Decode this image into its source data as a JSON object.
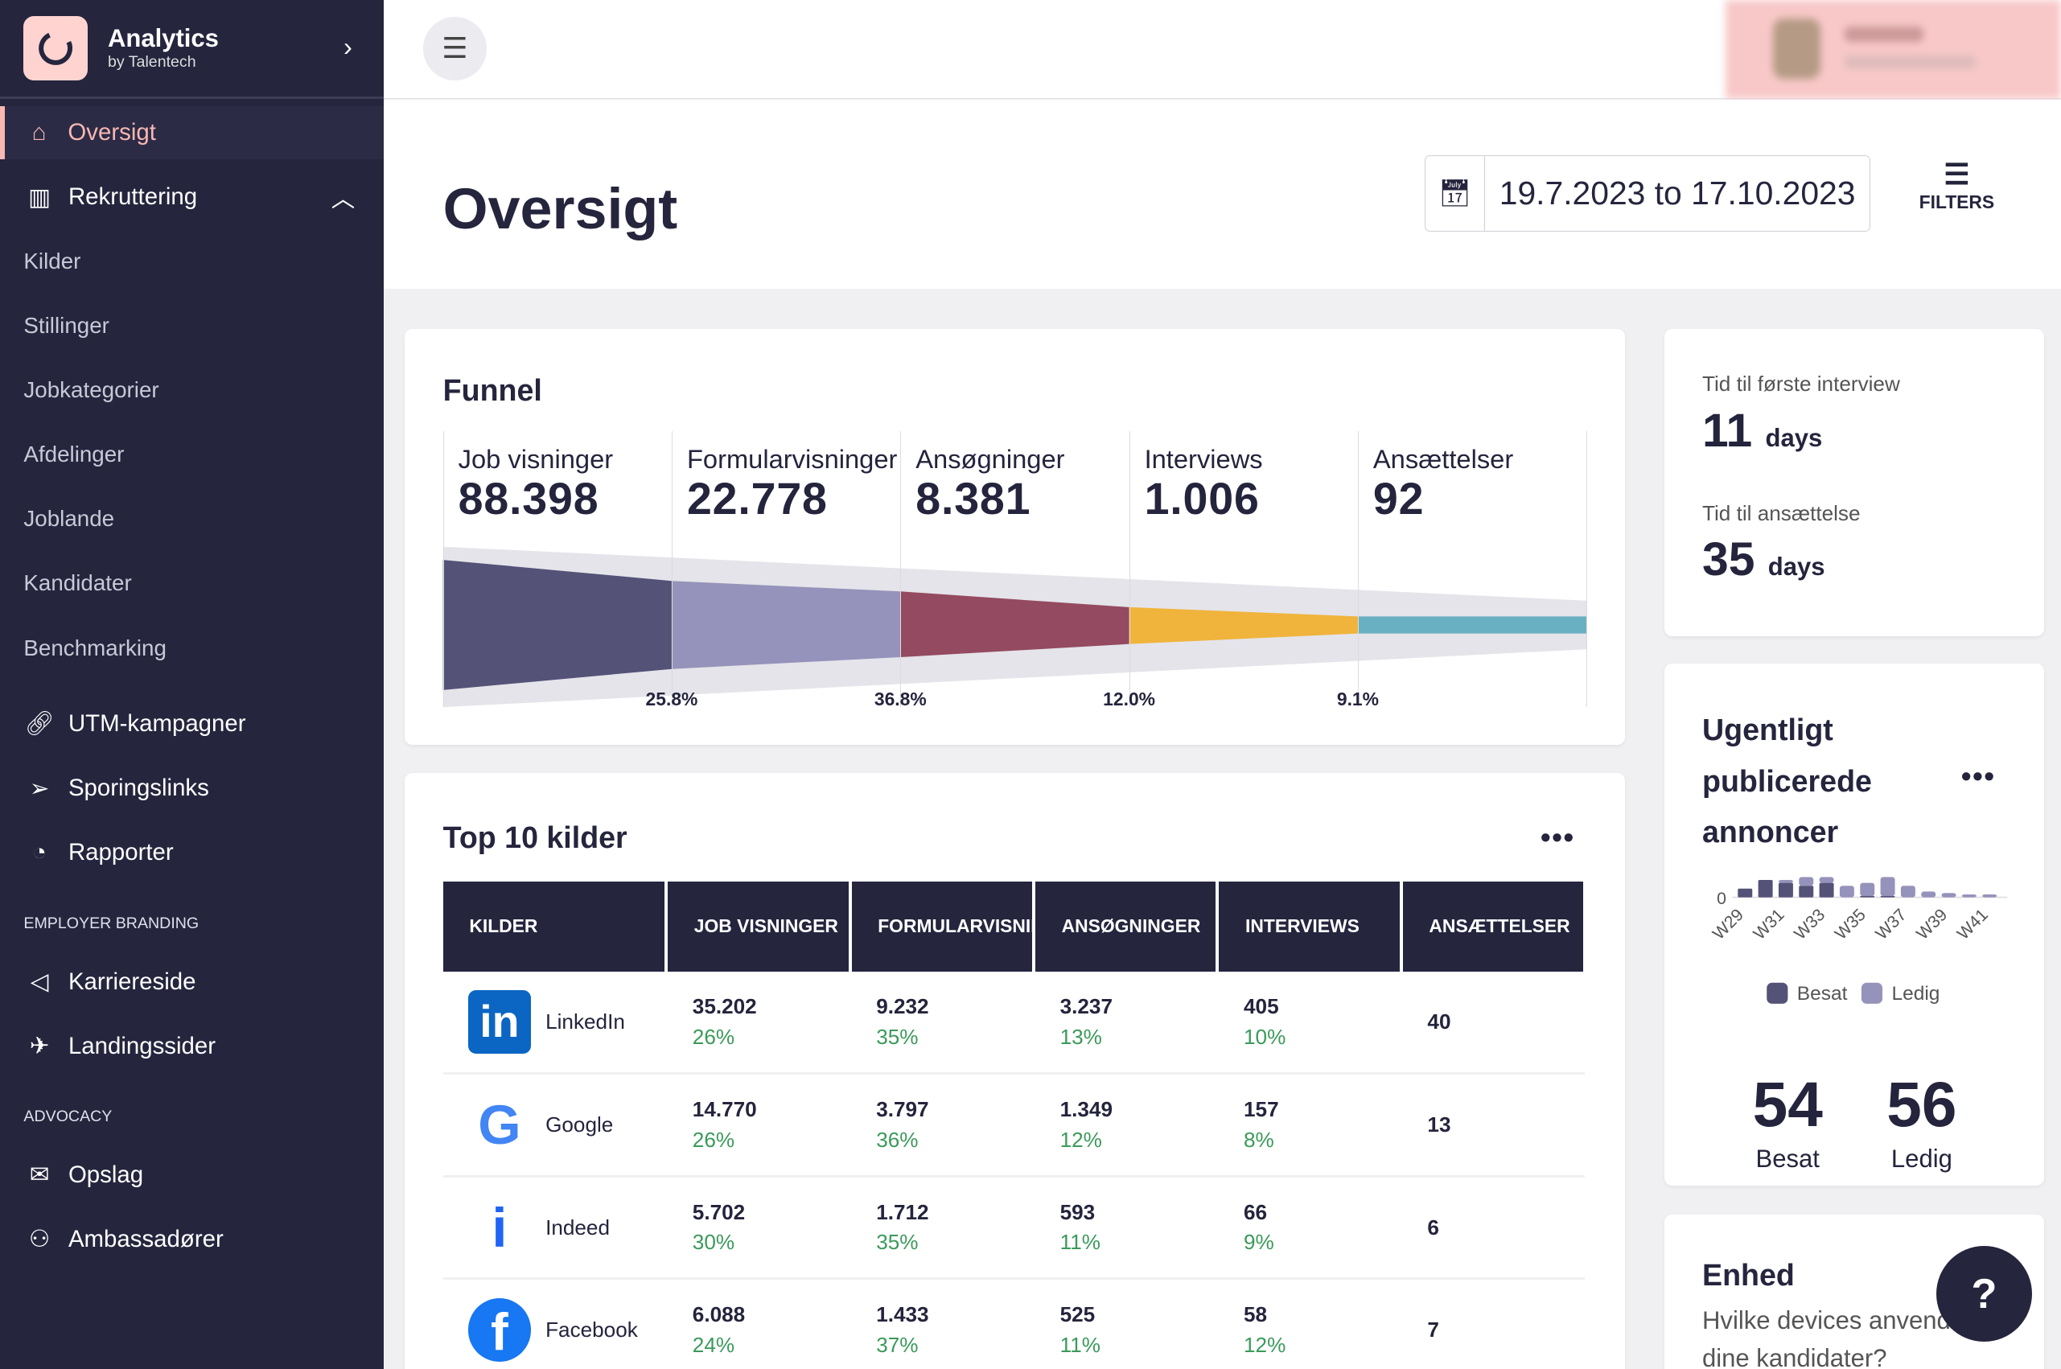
{
  "brand": {
    "title": "Analytics",
    "subtitle": "by Talentech"
  },
  "sidebar": {
    "items": [
      {
        "label": "Oversigt",
        "icon": "home-icon",
        "active": true
      },
      {
        "label": "Rekruttering",
        "icon": "bar-chart-icon"
      },
      {
        "label": "Kilder"
      },
      {
        "label": "Stillinger"
      },
      {
        "label": "Jobkategorier"
      },
      {
        "label": "Afdelinger"
      },
      {
        "label": "Joblande"
      },
      {
        "label": "Kandidater"
      },
      {
        "label": "Benchmarking"
      },
      {
        "label": "UTM-kampagner",
        "icon": "link-icon"
      },
      {
        "label": "Sporingslinks",
        "icon": "send-icon"
      },
      {
        "label": "Rapporter",
        "icon": "pie-chart-icon"
      },
      {
        "label": "Karriereside",
        "icon": "megaphone-icon"
      },
      {
        "label": "Landingssider",
        "icon": "plane-icon"
      },
      {
        "label": "Opslag",
        "icon": "mail-icon"
      },
      {
        "label": "Ambassadører",
        "icon": "users-icon"
      }
    ],
    "sections": {
      "employer_branding": "EMPLOYER BRANDING",
      "advocacy": "ADVOCACY"
    }
  },
  "header": {
    "title": "Oversigt",
    "date_range": "19.7.2023 to 17.10.2023",
    "filters_label": "FILTERS"
  },
  "funnel": {
    "title": "Funnel",
    "stages": [
      {
        "label": "Job visninger",
        "value": "88.398"
      },
      {
        "label": "Formularvisninger",
        "value": "22.778"
      },
      {
        "label": "Ansøgninger",
        "value": "8.381"
      },
      {
        "label": "Interviews",
        "value": "1.006"
      },
      {
        "label": "Ansættelser",
        "value": "92"
      }
    ],
    "conversions": [
      "25.8%",
      "36.8%",
      "12.0%",
      "9.1%"
    ],
    "colors": [
      "#545277",
      "#9593bb",
      "#944a60",
      "#f0b43c",
      "#6ab0c3"
    ]
  },
  "top_sources": {
    "title": "Top 10 kilder",
    "columns": [
      "KILDER",
      "JOB VISNINGER",
      "FORMULARVISNINGER",
      "ANSØGNINGER",
      "INTERVIEWS",
      "ANSÆTTELSER"
    ],
    "rows": [
      {
        "name": "LinkedIn",
        "icon": "linkedin-icon",
        "job": "35.202",
        "job_p": "26%",
        "form": "9.232",
        "form_p": "35%",
        "app": "3.237",
        "app_p": "13%",
        "int": "405",
        "int_p": "10%",
        "hires": "40"
      },
      {
        "name": "Google",
        "icon": "google-icon",
        "job": "14.770",
        "job_p": "26%",
        "form": "3.797",
        "form_p": "36%",
        "app": "1.349",
        "app_p": "12%",
        "int": "157",
        "int_p": "8%",
        "hires": "13"
      },
      {
        "name": "Indeed",
        "icon": "indeed-icon",
        "job": "5.702",
        "job_p": "30%",
        "form": "1.712",
        "form_p": "35%",
        "app": "593",
        "app_p": "11%",
        "int": "66",
        "int_p": "9%",
        "hires": "6"
      },
      {
        "name": "Facebook",
        "icon": "facebook-icon",
        "job": "6.088",
        "job_p": "24%",
        "form": "1.433",
        "form_p": "37%",
        "app": "525",
        "app_p": "11%",
        "int": "58",
        "int_p": "12%",
        "hires": "7"
      }
    ]
  },
  "time_stats": {
    "first_interview_label": "Tid til første interview",
    "first_interview_value": "11",
    "first_interview_unit": "days",
    "hire_label": "Tid til ansættelse",
    "hire_value": "35",
    "hire_unit": "days"
  },
  "weekly": {
    "title": "Ugentligt publicerede annoncer",
    "besat_value": "54",
    "besat_label": "Besat",
    "ledig_value": "56",
    "ledig_label": "Ledig",
    "chart_data": {
      "type": "bar",
      "stacked": true,
      "categories": [
        "W29",
        "W30",
        "W31",
        "W32",
        "W33",
        "W34",
        "W35",
        "W36",
        "W37",
        "W38",
        "W39",
        "W40",
        "W41"
      ],
      "tick_labels": [
        "W29",
        "W31",
        "W33",
        "W35",
        "W37",
        "W39",
        "W41"
      ],
      "y_tick_labels": [
        "0"
      ],
      "series": [
        {
          "name": "Besat",
          "color": "#545277",
          "values": [
            3,
            6,
            5,
            4,
            5,
            0,
            0.5,
            0.5,
            0,
            0,
            0,
            0,
            0
          ]
        },
        {
          "name": "Ledig",
          "color": "#9593bb",
          "values": [
            0,
            0,
            1,
            3,
            2,
            4,
            4.5,
            6.5,
            4,
            2,
            1.5,
            1,
            1
          ]
        }
      ],
      "legend": "bottom"
    }
  },
  "device": {
    "title": "Enhed",
    "subtitle": "Hvilke devices anvender dine kandidater?"
  }
}
